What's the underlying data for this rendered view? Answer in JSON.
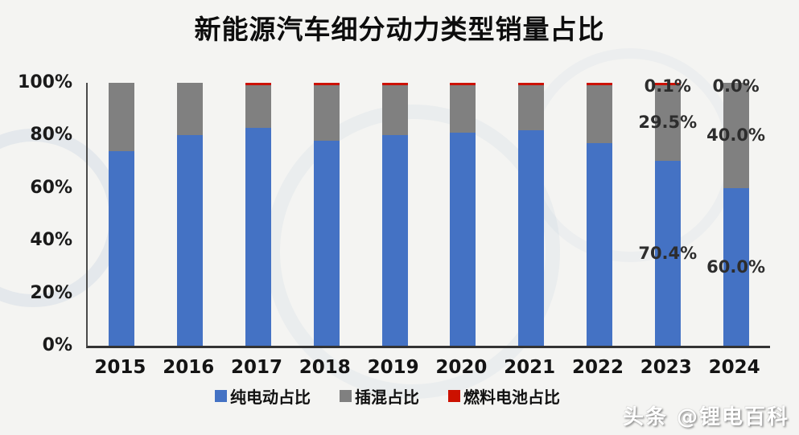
{
  "title": "新能源汽车细分动力类型销量占比",
  "watermark": "头条 @锂电百科",
  "colors": {
    "bev": "#4472c4",
    "phev": "#808080",
    "fcv": "#cc1100",
    "axis": "#333333",
    "background": "#f4f4f2"
  },
  "chart_data": {
    "type": "bar",
    "stacked": true,
    "unit": "%",
    "title": "新能源汽车细分动力类型销量占比",
    "categories": [
      "2015",
      "2016",
      "2017",
      "2018",
      "2019",
      "2020",
      "2021",
      "2022",
      "2023",
      "2024"
    ],
    "y_axis": {
      "ticks": [
        "100%",
        "80%",
        "60%",
        "40%",
        "20%",
        "0%"
      ],
      "min": 0,
      "max": 100,
      "grid": false
    },
    "series": [
      {
        "name": "纯电动占比",
        "key": "bev",
        "color": "#4472c4",
        "values": [
          74,
          80,
          83,
          78,
          80,
          81,
          82,
          77,
          70.4,
          60.0
        ]
      },
      {
        "name": "插混占比",
        "key": "phev",
        "color": "#808080",
        "values": [
          26,
          20,
          16,
          21,
          19,
          18,
          17,
          22,
          29.5,
          40.0
        ]
      },
      {
        "name": "燃料电池占比",
        "key": "fcv",
        "color": "#cc1100",
        "values": [
          0,
          0,
          1,
          1,
          1,
          1,
          1,
          1,
          0.1,
          0.0
        ]
      }
    ],
    "data_labels": [
      {
        "category": "2023",
        "labels": {
          "fcv": "0.1%",
          "phev": "29.5%",
          "bev": "70.4%"
        }
      },
      {
        "category": "2024",
        "labels": {
          "fcv": "0.0%",
          "phev": "40.0%",
          "bev": "60.0%"
        }
      }
    ],
    "legend_position": "bottom"
  },
  "legend": [
    {
      "label": "纯电动占比",
      "color": "#4472c4"
    },
    {
      "label": "插混占比",
      "color": "#808080"
    },
    {
      "label": "燃料电池占比",
      "color": "#cc1100"
    }
  ]
}
